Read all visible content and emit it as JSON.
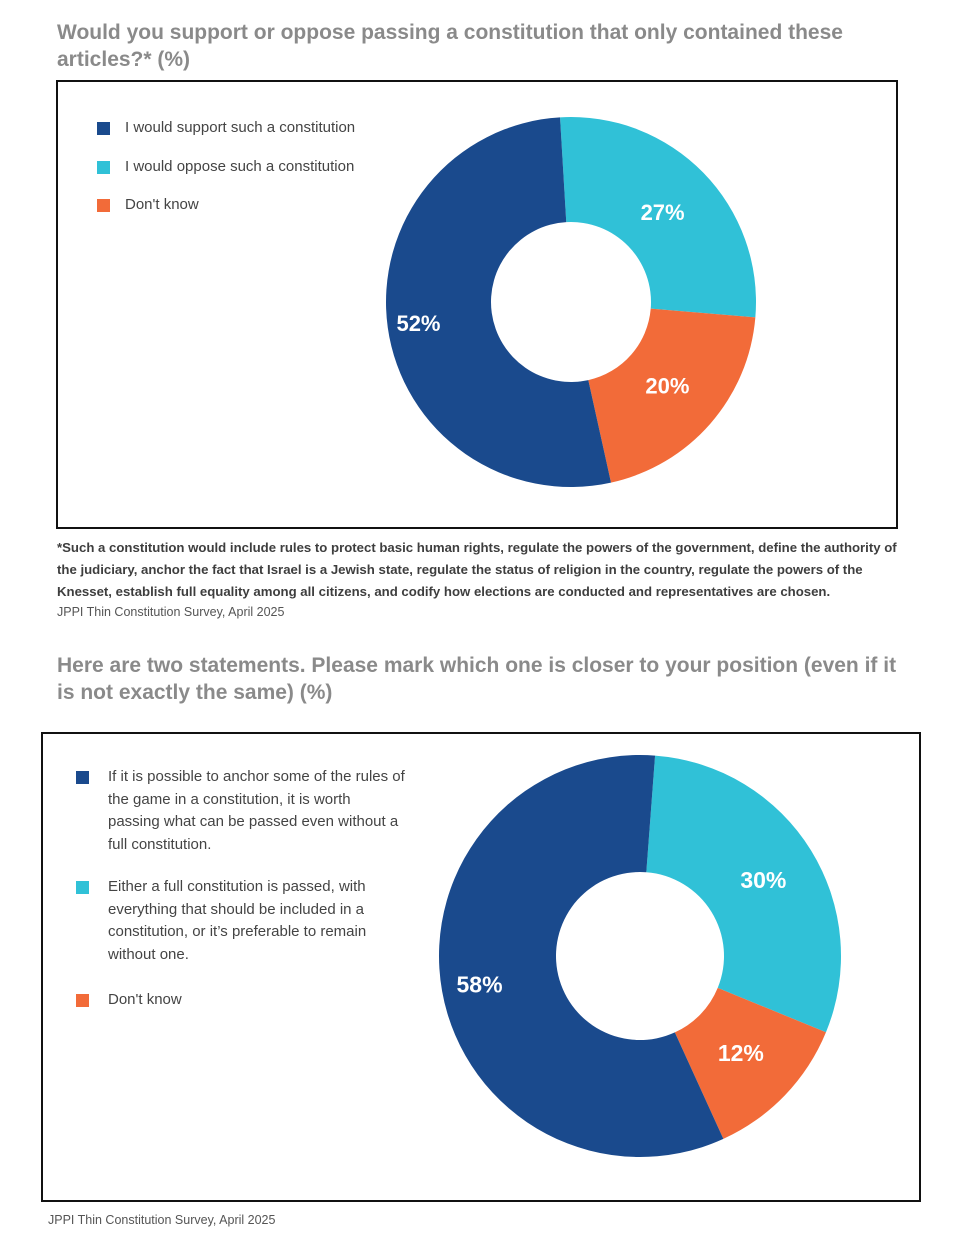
{
  "colors": {
    "support": "#1a4a8d",
    "oppose": "#30c1d7",
    "dontknow": "#f26b39"
  },
  "chart_data": [
    {
      "type": "pie",
      "title": "Would you support or oppose passing a constitution that only contained these articles?* (%)",
      "categories": [
        "I would support such a constitution",
        "I would oppose such a constitution",
        "Don't know"
      ],
      "values": [
        52,
        27,
        20
      ],
      "value_labels": [
        "52%",
        "27%",
        "20%"
      ],
      "legend": "top-left",
      "note": "*Such a constitution would include rules to protect basic human rights, regulate the powers of the government, define the authority of the judiciary, anchor the fact that Israel is a Jewish state, regulate the status of religion in the country, regulate the powers of the Knesset, establish full equality among all citizens, and codify how elections are conducted and representatives are chosen.",
      "source": "JPPI Thin Constitution Survey, April 2025"
    },
    {
      "type": "pie",
      "title": "Here are two statements.  Please mark which one is closer to your position (even if it is not exactly the same) (%)",
      "categories": [
        "If it is possible to anchor some of the rules of the game in a constitution, it is worth passing what can be passed  even without a full constitution.",
        "Either a full constitution is passed, with everything that should be included in a constitution, or it’s preferable to remain without one.",
        "Don't know"
      ],
      "values": [
        58,
        30,
        12
      ],
      "value_labels": [
        "58%",
        "30%",
        "12%"
      ],
      "legend": "left",
      "source": "JPPI Thin Constitution Survey, April 2025"
    }
  ]
}
